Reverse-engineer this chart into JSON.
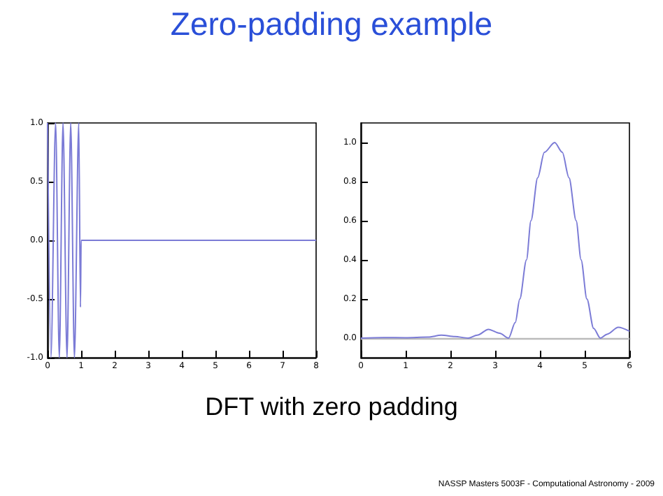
{
  "chart_data": [
    {
      "type": "line",
      "title": "Zero-padding example",
      "xlim": [
        0,
        8
      ],
      "ylim": [
        -1,
        1
      ],
      "xticks": [
        0,
        1,
        2,
        3,
        4,
        5,
        6,
        7,
        8
      ],
      "yticks": [
        {
          "value": -1,
          "label": "-1.0"
        },
        {
          "value": -0.5,
          "label": "-0.5"
        },
        {
          "value": 0,
          "label": "0.0"
        },
        {
          "value": 0.5,
          "label": "0.5"
        },
        {
          "value": 1,
          "label": "1.0"
        }
      ],
      "grid": false,
      "marker": "none",
      "series": [
        {
          "color": "#7b7bd6",
          "x": [
            0,
            0.1,
            0.24,
            0.35,
            0.46,
            0.58,
            0.69,
            0.8,
            0.93,
            0.98,
            1.0,
            8
          ],
          "values": [
            1,
            -1,
            1,
            -1,
            1,
            -1,
            1,
            -1,
            1,
            -0.57,
            0,
            0
          ]
        }
      ]
    },
    {
      "type": "line",
      "xlim": [
        0,
        6
      ],
      "ylim": [
        -0.1,
        1.1
      ],
      "xticks": [
        0,
        1,
        2,
        3,
        4,
        5,
        6
      ],
      "yticks": [
        {
          "value": 0,
          "label": "0.0"
        },
        {
          "value": 0.2,
          "label": "0.2"
        },
        {
          "value": 0.4,
          "label": "0.4"
        },
        {
          "value": 0.6,
          "label": "0.6"
        },
        {
          "value": 0.8,
          "label": "0.8"
        },
        {
          "value": 1,
          "label": "1.0"
        }
      ],
      "grid": false,
      "marker": "none",
      "ref_lines": [
        {
          "axis": "y",
          "value": 0,
          "color": "#bbbbbb"
        }
      ],
      "annotations": [
        "DFT with zero padding",
        "NASSP Masters 5003F - Computational Astronomy - 2009"
      ],
      "series": [
        {
          "color": "#7b7bd6",
          "x": [
            0,
            0.5,
            1,
            1.5,
            1.8,
            2.1,
            2.4,
            2.6,
            2.85,
            3.1,
            3.3,
            3.45,
            3.55,
            3.7,
            3.8,
            3.95,
            4.1,
            4.33,
            4.5,
            4.65,
            4.81,
            4.92,
            5.05,
            5.2,
            5.35,
            5.5,
            5.75,
            6
          ],
          "values": [
            0,
            0.003,
            0.002,
            0.005,
            0.015,
            0.008,
            0,
            0.015,
            0.045,
            0.025,
            0,
            0.08,
            0.2,
            0.4,
            0.6,
            0.82,
            0.95,
            1,
            0.95,
            0.82,
            0.6,
            0.4,
            0.2,
            0.05,
            0,
            0.02,
            0.055,
            0.035
          ]
        }
      ]
    }
  ]
}
